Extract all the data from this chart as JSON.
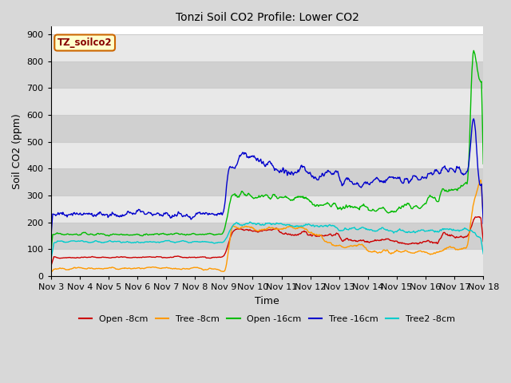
{
  "title": "Tonzi Soil CO2 Profile: Lower CO2",
  "ylabel": "Soil CO2 (ppm)",
  "xlabel": "Time",
  "watermark": "TZ_soilco2",
  "ylim": [
    0,
    930
  ],
  "yticks": [
    0,
    100,
    200,
    300,
    400,
    500,
    600,
    700,
    800,
    900
  ],
  "series": {
    "Open -8cm": {
      "color": "#cc0000",
      "lw": 1.0
    },
    "Tree -8cm": {
      "color": "#ff9900",
      "lw": 1.0
    },
    "Open -16cm": {
      "color": "#00bb00",
      "lw": 1.0
    },
    "Tree -16cm": {
      "color": "#0000cc",
      "lw": 1.0
    },
    "Tree2 -8cm": {
      "color": "#00cccc",
      "lw": 1.0
    }
  },
  "legend_order": [
    "Open -8cm",
    "Tree -8cm",
    "Open -16cm",
    "Tree -16cm",
    "Tree2 -8cm"
  ],
  "x_tick_labels": [
    "Nov 3",
    "Nov 4",
    "Nov 5",
    "Nov 6",
    "Nov 7",
    "Nov 8",
    "Nov 9",
    "Nov 10",
    "Nov 11",
    "Nov 12",
    "Nov 13",
    "Nov 14",
    "Nov 15",
    "Nov 16",
    "Nov 17",
    "Nov 18"
  ],
  "bg_color": "#d8d8d8",
  "plot_bg_color": "#ffffff",
  "band_color_light": "#e8e8e8",
  "band_color_dark": "#d0d0d0",
  "grid_color": "#cccccc",
  "watermark_bg": "#ffffcc",
  "watermark_border": "#cc6600",
  "watermark_text_color": "#880000"
}
